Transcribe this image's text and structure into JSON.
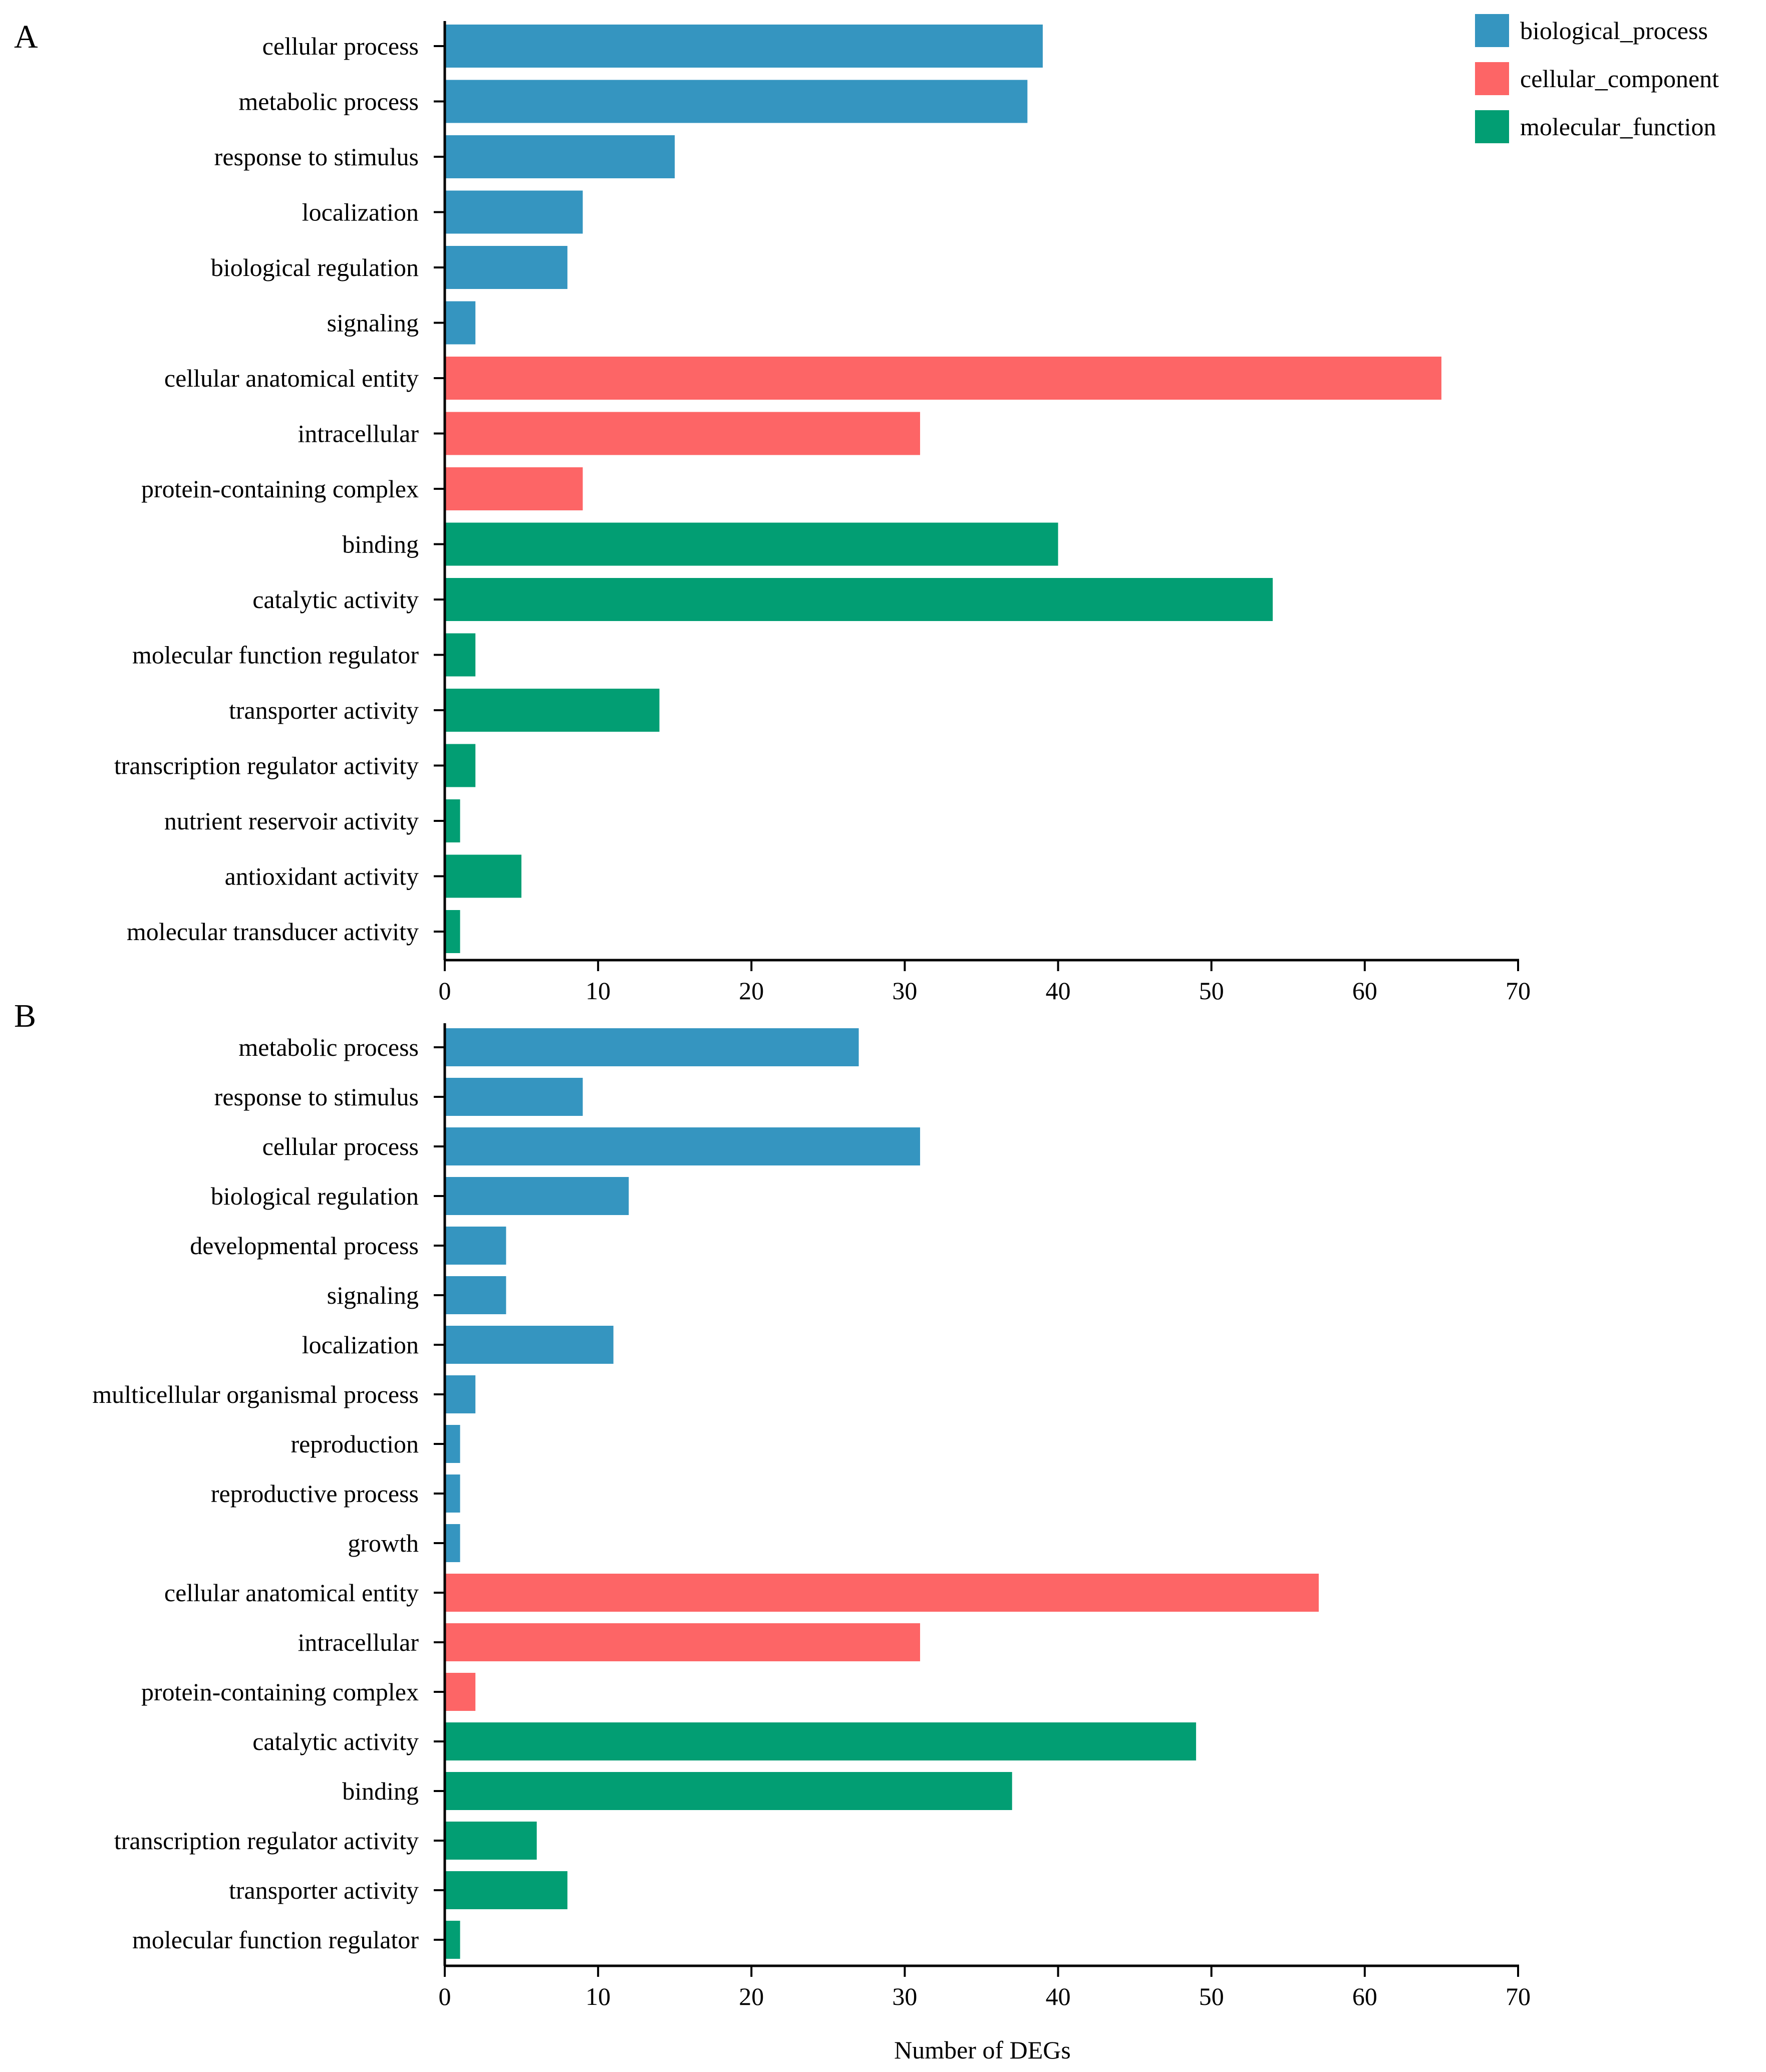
{
  "colors": {
    "biological_process": "#3595c0",
    "cellular_component": "#fd6566",
    "molecular_function": "#029e73",
    "axis": "#000000"
  },
  "legend": {
    "placement": "top-right",
    "items": [
      {
        "key": "biological_process",
        "label": "biological_process"
      },
      {
        "key": "cellular_component",
        "label": "cellular_component"
      },
      {
        "key": "molecular_function",
        "label": "molecular_function"
      }
    ]
  },
  "chart_data": [
    {
      "type": "bar",
      "orientation": "horizontal",
      "panel_label": "A",
      "xlabel": "",
      "xlim": [
        0,
        70
      ],
      "xticks": [
        0,
        10,
        20,
        30,
        40,
        50,
        60,
        70
      ],
      "categories": [
        "cellular process",
        "metabolic process",
        "response to stimulus",
        "localization",
        "biological regulation",
        "signaling",
        "cellular anatomical entity",
        "intracellular",
        "protein-containing complex",
        "binding",
        "catalytic activity",
        "molecular function regulator",
        "transporter activity",
        "transcription regulator activity",
        "nutrient reservoir activity",
        "antioxidant activity",
        "molecular transducer activity"
      ],
      "values": [
        39,
        38,
        15,
        9,
        8,
        2,
        65,
        31,
        9,
        40,
        54,
        2,
        14,
        2,
        1,
        5,
        1
      ],
      "groups": [
        "biological_process",
        "biological_process",
        "biological_process",
        "biological_process",
        "biological_process",
        "biological_process",
        "cellular_component",
        "cellular_component",
        "cellular_component",
        "molecular_function",
        "molecular_function",
        "molecular_function",
        "molecular_function",
        "molecular_function",
        "molecular_function",
        "molecular_function",
        "molecular_function"
      ]
    },
    {
      "type": "bar",
      "orientation": "horizontal",
      "panel_label": "B",
      "xlabel": "Number of DEGs",
      "xlim": [
        0,
        70
      ],
      "xticks": [
        0,
        10,
        20,
        30,
        40,
        50,
        60,
        70
      ],
      "categories": [
        "metabolic process",
        "response to stimulus",
        "cellular process",
        "biological regulation",
        "developmental process",
        "signaling",
        "localization",
        "multicellular organismal process",
        "reproduction",
        "reproductive process",
        "growth",
        "cellular anatomical entity",
        "intracellular",
        "protein-containing complex",
        "catalytic activity",
        "binding",
        "transcription regulator activity",
        "transporter activity",
        "molecular function regulator"
      ],
      "values": [
        27,
        9,
        31,
        12,
        4,
        4,
        11,
        2,
        1,
        1,
        1,
        57,
        31,
        2,
        49,
        37,
        6,
        8,
        1
      ],
      "groups": [
        "biological_process",
        "biological_process",
        "biological_process",
        "biological_process",
        "biological_process",
        "biological_process",
        "biological_process",
        "biological_process",
        "biological_process",
        "biological_process",
        "biological_process",
        "cellular_component",
        "cellular_component",
        "cellular_component",
        "molecular_function",
        "molecular_function",
        "molecular_function",
        "molecular_function",
        "molecular_function"
      ]
    }
  ]
}
